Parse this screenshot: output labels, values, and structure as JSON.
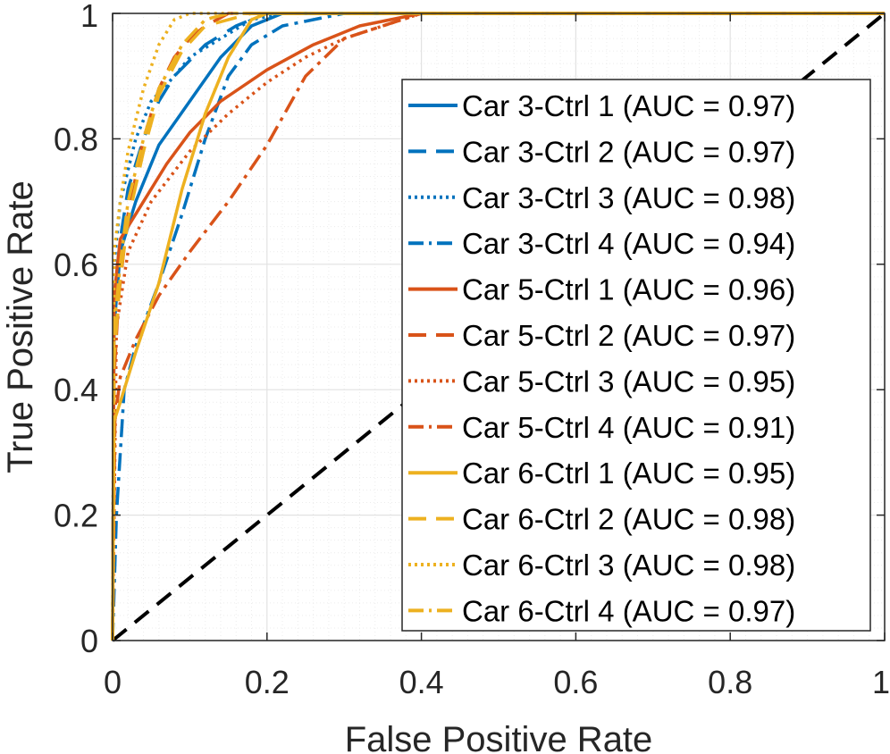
{
  "chart_data": {
    "type": "line",
    "title": "",
    "xlabel": "False Positive Rate",
    "ylabel": "True Positive Rate",
    "xlim": [
      0,
      1
    ],
    "ylim": [
      0,
      1
    ],
    "grid": true,
    "minor_grid": true,
    "legend_position": "right",
    "xticks": [
      {
        "value": 0,
        "label": "0"
      },
      {
        "value": 0.2,
        "label": "0.2"
      },
      {
        "value": 0.4,
        "label": "0.4"
      },
      {
        "value": 0.6,
        "label": "0.6"
      },
      {
        "value": 0.8,
        "label": "0.8"
      },
      {
        "value": 1,
        "label": "1"
      }
    ],
    "yticks": [
      {
        "value": 0,
        "label": "0"
      },
      {
        "value": 0.2,
        "label": "0.2"
      },
      {
        "value": 0.4,
        "label": "0.4"
      },
      {
        "value": 0.6,
        "label": "0.6"
      },
      {
        "value": 0.8,
        "label": "0.8"
      },
      {
        "value": 1,
        "label": "1"
      }
    ],
    "reference_line": {
      "name": "chance",
      "x": [
        0,
        1
      ],
      "y": [
        0,
        1
      ],
      "color": "#000000",
      "style": "dashed"
    },
    "series": [
      {
        "name": "Car 3-Ctrl 1 (AUC = 0.97)",
        "color": "#0072BD",
        "style": "solid",
        "x": [
          0,
          0.002,
          0.01,
          0.03,
          0.06,
          0.1,
          0.14,
          0.18,
          0.22,
          0.3,
          0.4,
          1
        ],
        "y": [
          0,
          0.5,
          0.62,
          0.7,
          0.79,
          0.86,
          0.93,
          0.98,
          1.0,
          1.0,
          1.0,
          1.0
        ]
      },
      {
        "name": "Car 3-Ctrl 2 (AUC = 0.97)",
        "color": "#0072BD",
        "style": "dashed",
        "x": [
          0,
          0.002,
          0.01,
          0.02,
          0.04,
          0.06,
          0.08,
          0.12,
          0.16,
          0.2,
          0.3,
          1
        ],
        "y": [
          0,
          0.55,
          0.64,
          0.72,
          0.8,
          0.86,
          0.9,
          0.95,
          0.98,
          1.0,
          1.0,
          1.0
        ]
      },
      {
        "name": "Car 3-Ctrl 3 (AUC = 0.98)",
        "color": "#0072BD",
        "style": "dotted",
        "x": [
          0,
          0.002,
          0.01,
          0.03,
          0.05,
          0.08,
          0.1,
          0.14,
          0.18,
          0.22,
          0.3,
          1
        ],
        "y": [
          0,
          0.6,
          0.7,
          0.8,
          0.86,
          0.9,
          0.93,
          0.96,
          0.99,
          1.0,
          1.0,
          1.0
        ]
      },
      {
        "name": "Car 3-Ctrl 4 (AUC = 0.94)",
        "color": "#0072BD",
        "style": "dashdot",
        "x": [
          0,
          0.005,
          0.015,
          0.03,
          0.06,
          0.09,
          0.12,
          0.15,
          0.18,
          0.22,
          0.3,
          0.35,
          1
        ],
        "y": [
          0,
          0.2,
          0.4,
          0.47,
          0.57,
          0.68,
          0.8,
          0.9,
          0.95,
          0.98,
          1.0,
          1.0,
          1.0
        ]
      },
      {
        "name": "Car 5-Ctrl 1 (AUC = 0.96)",
        "color": "#D95319",
        "style": "solid",
        "x": [
          0,
          0.002,
          0.01,
          0.04,
          0.07,
          0.1,
          0.14,
          0.2,
          0.26,
          0.32,
          0.4,
          0.45,
          1
        ],
        "y": [
          0,
          0.55,
          0.64,
          0.7,
          0.76,
          0.81,
          0.86,
          0.91,
          0.95,
          0.98,
          1.0,
          1.0,
          1.0
        ]
      },
      {
        "name": "Car 5-Ctrl 2 (AUC = 0.97)",
        "color": "#D95319",
        "style": "dashed",
        "x": [
          0,
          0.002,
          0.008,
          0.02,
          0.04,
          0.06,
          0.08,
          0.1,
          0.12,
          0.15,
          0.2,
          1
        ],
        "y": [
          0,
          0.42,
          0.55,
          0.68,
          0.8,
          0.88,
          0.93,
          0.96,
          0.98,
          1.0,
          1.0,
          1.0
        ]
      },
      {
        "name": "Car 5-Ctrl 3 (AUC = 0.95)",
        "color": "#D95319",
        "style": "dotted",
        "x": [
          0,
          0.005,
          0.02,
          0.05,
          0.1,
          0.15,
          0.2,
          0.25,
          0.3,
          0.35,
          0.4,
          0.45,
          1
        ],
        "y": [
          0,
          0.5,
          0.62,
          0.7,
          0.78,
          0.84,
          0.89,
          0.93,
          0.96,
          0.98,
          1.0,
          1.0,
          1.0
        ]
      },
      {
        "name": "Car 5-Ctrl 4 (AUC = 0.91)",
        "color": "#D95319",
        "style": "dashdot",
        "x": [
          0,
          0.003,
          0.01,
          0.03,
          0.06,
          0.1,
          0.15,
          0.2,
          0.25,
          0.3,
          0.35,
          0.4,
          0.45,
          1
        ],
        "y": [
          0,
          0.35,
          0.42,
          0.48,
          0.55,
          0.62,
          0.7,
          0.79,
          0.9,
          0.96,
          0.98,
          1.0,
          1.0,
          1.0
        ]
      },
      {
        "name": "Car 6-Ctrl 1 (AUC = 0.95)",
        "color": "#EDB120",
        "style": "solid",
        "x": [
          0,
          0.002,
          0.01,
          0.03,
          0.06,
          0.09,
          0.12,
          0.15,
          0.18,
          0.2,
          1
        ],
        "y": [
          0,
          0.35,
          0.38,
          0.46,
          0.57,
          0.72,
          0.84,
          0.93,
          0.99,
          1.0,
          1.0
        ]
      },
      {
        "name": "Car 6-Ctrl 2 (AUC = 0.98)",
        "color": "#EDB120",
        "style": "dashed",
        "x": [
          0,
          0.002,
          0.01,
          0.02,
          0.04,
          0.06,
          0.09,
          0.12,
          0.15,
          0.18,
          1
        ],
        "y": [
          0,
          0.45,
          0.58,
          0.67,
          0.78,
          0.87,
          0.94,
          0.98,
          0.99,
          1.0,
          1.0
        ]
      },
      {
        "name": "Car 6-Ctrl 3 (AUC = 0.98)",
        "color": "#EDB120",
        "style": "dotted",
        "x": [
          0,
          0.002,
          0.01,
          0.02,
          0.04,
          0.06,
          0.08,
          0.1,
          0.12,
          1
        ],
        "y": [
          0,
          0.62,
          0.7,
          0.78,
          0.88,
          0.95,
          0.99,
          1.0,
          1.0,
          1.0
        ]
      },
      {
        "name": "Car 6-Ctrl 4 (AUC = 0.97)",
        "color": "#EDB120",
        "style": "dashdot",
        "x": [
          0,
          0.002,
          0.01,
          0.02,
          0.04,
          0.06,
          0.09,
          0.12,
          0.15,
          0.18,
          1
        ],
        "y": [
          0,
          0.5,
          0.6,
          0.7,
          0.8,
          0.88,
          0.95,
          0.99,
          1.0,
          1.0,
          1.0
        ]
      }
    ]
  }
}
